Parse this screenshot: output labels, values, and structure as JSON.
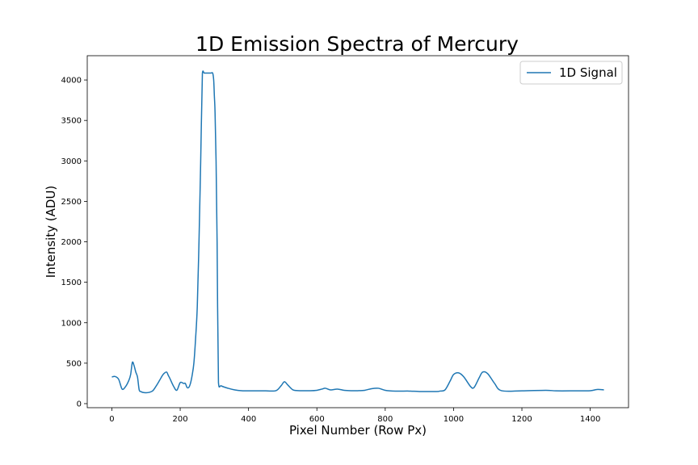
{
  "chart_data": {
    "type": "line",
    "title": "1D Emission Spectra of Mercury",
    "xlabel": "Pixel Number (Row Px)",
    "ylabel": "Intensity (ADU)",
    "xlim": [
      -72,
      1512
    ],
    "ylim": [
      -50,
      4300
    ],
    "xticks": [
      0,
      200,
      400,
      600,
      800,
      1000,
      1200,
      1400
    ],
    "yticks": [
      0,
      500,
      1000,
      1500,
      2000,
      2500,
      3000,
      3500,
      4000
    ],
    "grid": false,
    "legend_position": "top-right",
    "color": "#1f77b4",
    "series": [
      {
        "name": "1D Signal",
        "x": [
          0,
          10,
          20,
          30,
          40,
          50,
          55,
          60,
          65,
          70,
          75,
          80,
          85,
          90,
          100,
          110,
          120,
          130,
          140,
          150,
          160,
          165,
          170,
          180,
          190,
          200,
          210,
          215,
          220,
          225,
          230,
          235,
          240,
          245,
          250,
          255,
          260,
          265,
          270,
          275,
          280,
          285,
          290,
          295,
          298,
          300,
          302,
          305,
          308,
          312,
          320,
          340,
          360,
          380,
          400,
          450,
          480,
          495,
          505,
          515,
          530,
          550,
          580,
          600,
          615,
          625,
          640,
          660,
          680,
          700,
          720,
          740,
          760,
          780,
          800,
          830,
          870,
          900,
          950,
          960,
          975,
          990,
          1000,
          1015,
          1030,
          1050,
          1060,
          1075,
          1085,
          1100,
          1120,
          1140,
          1200,
          1270,
          1300,
          1350,
          1400,
          1420,
          1440
        ],
        "values": [
          330,
          335,
          300,
          180,
          210,
          290,
          360,
          510,
          470,
          390,
          330,
          170,
          150,
          140,
          135,
          140,
          160,
          220,
          290,
          360,
          390,
          350,
          310,
          220,
          165,
          260,
          250,
          250,
          200,
          200,
          250,
          350,
          500,
          800,
          1200,
          2000,
          3000,
          4085,
          4085,
          4085,
          4085,
          4085,
          4085,
          4085,
          4000,
          3800,
          3600,
          3000,
          2000,
          260,
          220,
          190,
          170,
          160,
          158,
          158,
          160,
          220,
          270,
          230,
          170,
          160,
          160,
          165,
          180,
          190,
          170,
          180,
          165,
          160,
          160,
          165,
          185,
          190,
          165,
          155,
          155,
          150,
          150,
          155,
          170,
          280,
          360,
          380,
          330,
          210,
          200,
          320,
          390,
          370,
          250,
          160,
          158,
          165,
          158,
          158,
          160,
          175,
          170
        ]
      }
    ]
  }
}
